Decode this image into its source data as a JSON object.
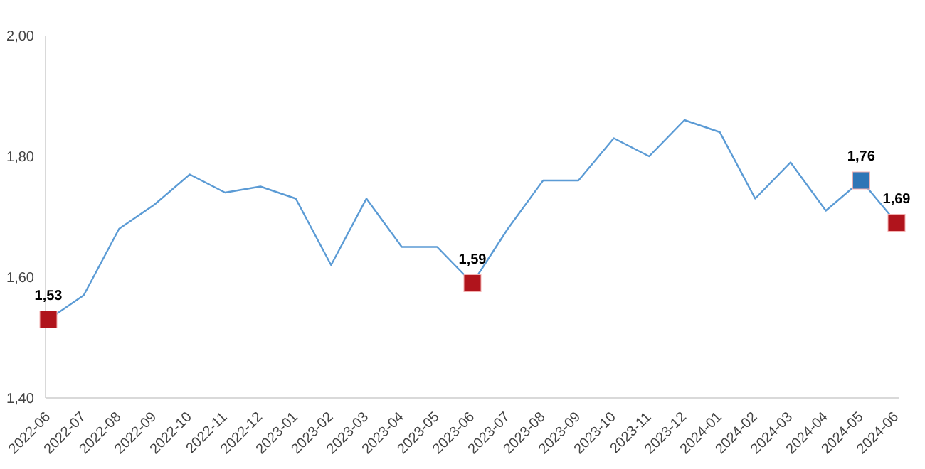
{
  "chart_data": {
    "type": "line",
    "categories": [
      "2022-06",
      "2022-07",
      "2022-08",
      "2022-09",
      "2022-10",
      "2022-11",
      "2022-12",
      "2023-01",
      "2023-02",
      "2023-03",
      "2023-04",
      "2023-05",
      "2023-06",
      "2023-07",
      "2023-08",
      "2023-09",
      "2023-10",
      "2023-11",
      "2023-12",
      "2024-01",
      "2024-02",
      "2024-03",
      "2024-04",
      "2024-05",
      "2024-06"
    ],
    "series": [
      {
        "color": "#5b9bd5",
        "values": [
          1.53,
          1.57,
          1.68,
          1.72,
          1.77,
          1.74,
          1.75,
          1.73,
          1.62,
          1.73,
          1.65,
          1.65,
          1.59,
          1.68,
          1.76,
          1.76,
          1.83,
          1.8,
          1.86,
          1.84,
          1.73,
          1.79,
          1.71,
          1.76,
          1.69
        ],
        "colors": [
          "#b0141c",
          null,
          null,
          null,
          null,
          null,
          null,
          null,
          null,
          null,
          null,
          null,
          "#b0141c",
          null,
          null,
          null,
          null,
          null,
          null,
          null,
          null,
          null,
          null,
          "#2e75b6",
          "#b0141c"
        ],
        "value_labels": [
          "1,53",
          null,
          null,
          null,
          null,
          null,
          null,
          null,
          null,
          null,
          null,
          null,
          "1,59",
          null,
          null,
          null,
          null,
          null,
          null,
          null,
          null,
          null,
          null,
          "1,76",
          "1,69"
        ]
      }
    ],
    "ylim": [
      1.4,
      2.0
    ],
    "yticks": [
      {
        "value": 1.4,
        "label": "1,40"
      },
      {
        "value": 1.6,
        "label": "1,60"
      },
      {
        "value": 1.8,
        "label": "1,80"
      },
      {
        "value": 2.0,
        "label": "2,00"
      }
    ],
    "grid": false,
    "legend": false,
    "line_style": "solid"
  }
}
